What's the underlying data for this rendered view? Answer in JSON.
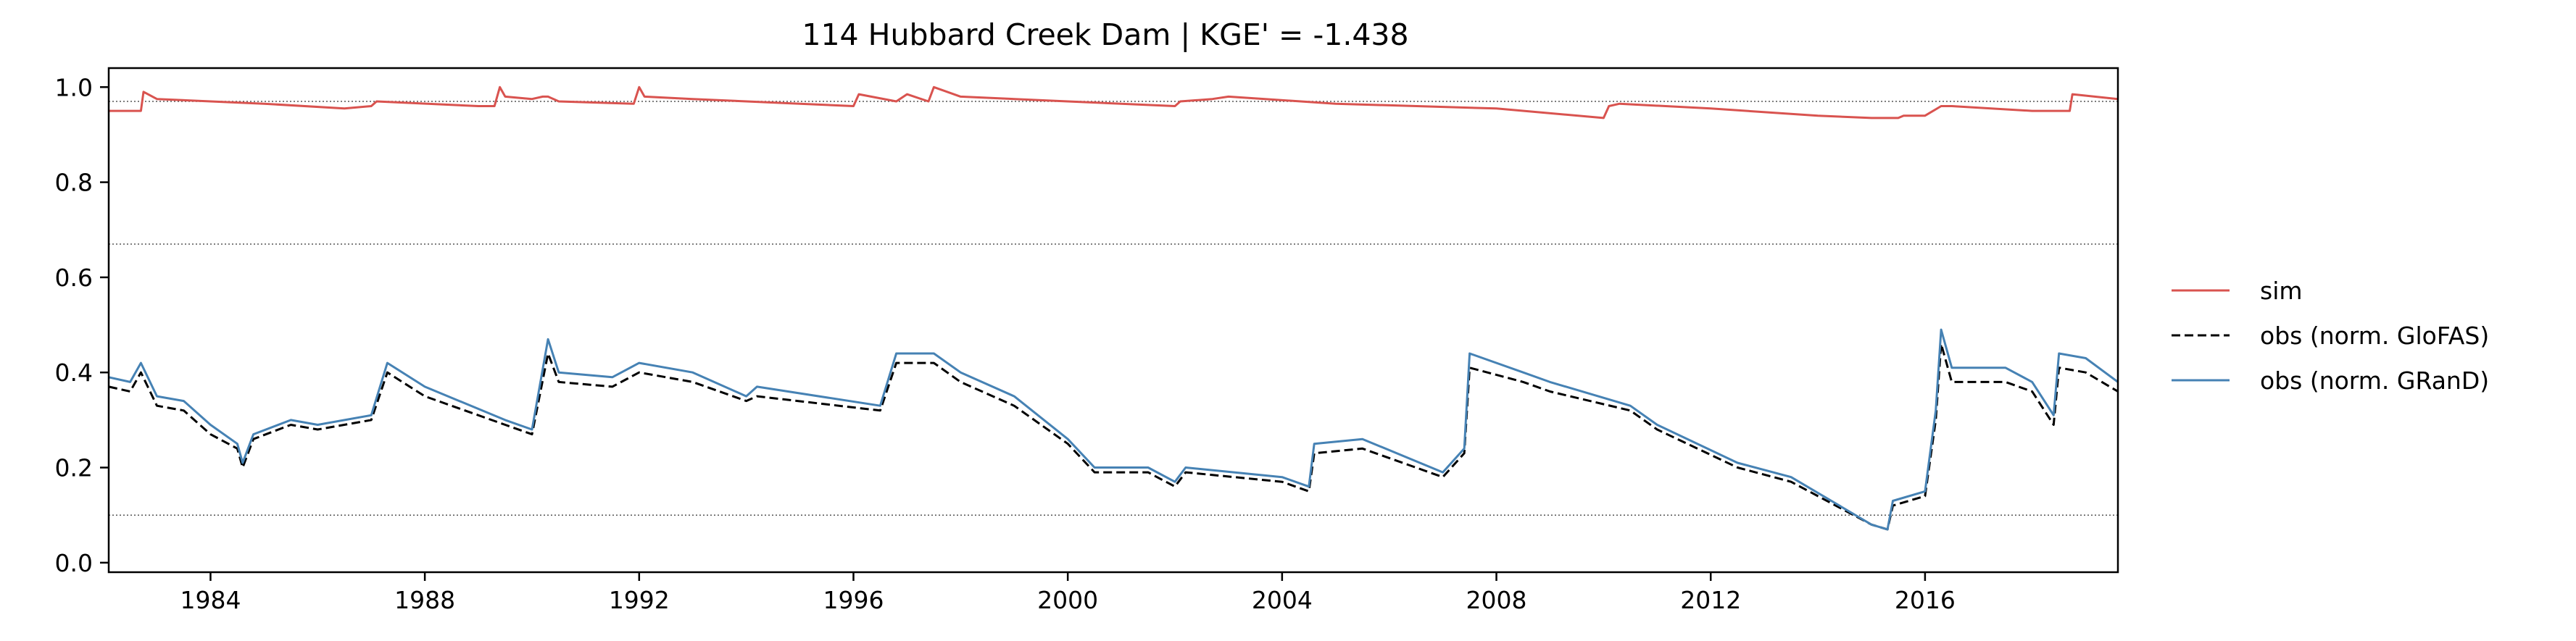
{
  "chart_data": {
    "type": "line",
    "title": "114  Hubbard Creek Dam | KGE' = -1.438",
    "xlabel": "",
    "ylabel": "",
    "xlim": [
      1982.1,
      2019.6
    ],
    "ylim": [
      -0.02,
      1.04
    ],
    "x_ticks": [
      1984,
      1988,
      1992,
      1996,
      2000,
      2004,
      2008,
      2012,
      2016
    ],
    "x_tick_labels": [
      "1984",
      "1988",
      "1992",
      "1996",
      "2000",
      "2004",
      "2008",
      "2012",
      "2016"
    ],
    "y_ticks": [
      0.0,
      0.2,
      0.4,
      0.6,
      0.8,
      1.0
    ],
    "y_tick_labels": [
      "0.0",
      "0.2",
      "0.4",
      "0.6",
      "0.8",
      "1.0"
    ],
    "reference_lines": [
      0.1,
      0.67,
      0.97
    ],
    "grid": false,
    "legend_position": "right",
    "series": [
      {
        "name": "sim",
        "color": "#d9534f",
        "style": "solid",
        "x": [
          1982.1,
          1982.7,
          1982.75,
          1983.0,
          1985.0,
          1986.5,
          1987.0,
          1987.1,
          1989.0,
          1989.3,
          1989.4,
          1989.5,
          1990.0,
          1990.2,
          1990.3,
          1990.5,
          1991.9,
          1992.0,
          1992.1,
          1993.0,
          1995.0,
          1996.0,
          1996.1,
          1996.8,
          1997.0,
          1997.4,
          1997.5,
          1998.0,
          2000.0,
          2002.0,
          2002.1,
          2002.7,
          2003.0,
          2005.0,
          2008.0,
          2010.0,
          2010.1,
          2010.3,
          2012.0,
          2014.0,
          2015.0,
          2015.5,
          2015.6,
          2016.0,
          2016.3,
          2016.5,
          2018.0,
          2018.7,
          2018.75,
          2019.6
        ],
        "y": [
          0.95,
          0.95,
          0.99,
          0.975,
          0.965,
          0.955,
          0.96,
          0.97,
          0.96,
          0.96,
          1.0,
          0.98,
          0.975,
          0.98,
          0.98,
          0.97,
          0.965,
          1.0,
          0.98,
          0.975,
          0.965,
          0.96,
          0.985,
          0.97,
          0.985,
          0.97,
          1.0,
          0.98,
          0.97,
          0.96,
          0.97,
          0.975,
          0.98,
          0.965,
          0.955,
          0.935,
          0.96,
          0.965,
          0.955,
          0.94,
          0.935,
          0.935,
          0.94,
          0.94,
          0.96,
          0.96,
          0.95,
          0.95,
          0.985,
          0.975
        ]
      },
      {
        "name": "obs (norm. GloFAS)",
        "color": "#000000",
        "style": "dashed",
        "x": [
          1982.1,
          1982.5,
          1982.7,
          1983.0,
          1983.5,
          1984.0,
          1984.5,
          1984.6,
          1984.8,
          1985.5,
          1986.0,
          1987.0,
          1987.3,
          1988.0,
          1989.5,
          1990.0,
          1990.3,
          1990.5,
          1991.5,
          1992.0,
          1993.0,
          1994.0,
          1994.2,
          1996.5,
          1996.8,
          1997.5,
          1998.0,
          1999.0,
          2000.0,
          2000.5,
          2001.5,
          2002.0,
          2002.2,
          2004.0,
          2004.5,
          2004.6,
          2005.5,
          2007.0,
          2007.4,
          2007.5,
          2008.5,
          2009.0,
          2010.5,
          2011.0,
          2012.5,
          2013.5,
          2015.0,
          2015.3,
          2015.4,
          2016.0,
          2016.2,
          2016.3,
          2016.5,
          2017.5,
          2018.0,
          2018.4,
          2018.5,
          2019.0,
          2019.6
        ],
        "y": [
          0.37,
          0.36,
          0.4,
          0.33,
          0.32,
          0.27,
          0.24,
          0.2,
          0.26,
          0.29,
          0.28,
          0.3,
          0.4,
          0.35,
          0.29,
          0.27,
          0.44,
          0.38,
          0.37,
          0.4,
          0.38,
          0.34,
          0.35,
          0.32,
          0.42,
          0.42,
          0.38,
          0.33,
          0.25,
          0.19,
          0.19,
          0.16,
          0.19,
          0.17,
          0.15,
          0.23,
          0.24,
          0.18,
          0.23,
          0.41,
          0.38,
          0.36,
          0.32,
          0.28,
          0.2,
          0.17,
          0.08,
          0.07,
          0.12,
          0.14,
          0.3,
          0.46,
          0.38,
          0.38,
          0.36,
          0.29,
          0.41,
          0.4,
          0.36
        ]
      },
      {
        "name": "obs (norm. GRanD)",
        "color": "#4682b4",
        "style": "solid",
        "x": [
          1982.1,
          1982.5,
          1982.7,
          1983.0,
          1983.5,
          1984.0,
          1984.5,
          1984.6,
          1984.8,
          1985.5,
          1986.0,
          1987.0,
          1987.3,
          1988.0,
          1989.5,
          1990.0,
          1990.3,
          1990.5,
          1991.5,
          1992.0,
          1993.0,
          1994.0,
          1994.2,
          1996.5,
          1996.8,
          1997.5,
          1998.0,
          1999.0,
          2000.0,
          2000.5,
          2001.5,
          2002.0,
          2002.2,
          2004.0,
          2004.5,
          2004.6,
          2005.5,
          2007.0,
          2007.4,
          2007.5,
          2008.5,
          2009.0,
          2010.5,
          2011.0,
          2012.5,
          2013.5,
          2015.0,
          2015.3,
          2015.4,
          2016.0,
          2016.2,
          2016.3,
          2016.5,
          2017.5,
          2018.0,
          2018.4,
          2018.5,
          2019.0,
          2019.6
        ],
        "y": [
          0.39,
          0.38,
          0.42,
          0.35,
          0.34,
          0.29,
          0.25,
          0.21,
          0.27,
          0.3,
          0.29,
          0.31,
          0.42,
          0.37,
          0.3,
          0.28,
          0.47,
          0.4,
          0.39,
          0.42,
          0.4,
          0.35,
          0.37,
          0.33,
          0.44,
          0.44,
          0.4,
          0.35,
          0.26,
          0.2,
          0.2,
          0.17,
          0.2,
          0.18,
          0.16,
          0.25,
          0.26,
          0.19,
          0.24,
          0.44,
          0.4,
          0.38,
          0.33,
          0.29,
          0.21,
          0.18,
          0.08,
          0.07,
          0.13,
          0.15,
          0.32,
          0.49,
          0.41,
          0.41,
          0.38,
          0.31,
          0.44,
          0.43,
          0.38
        ]
      }
    ]
  }
}
